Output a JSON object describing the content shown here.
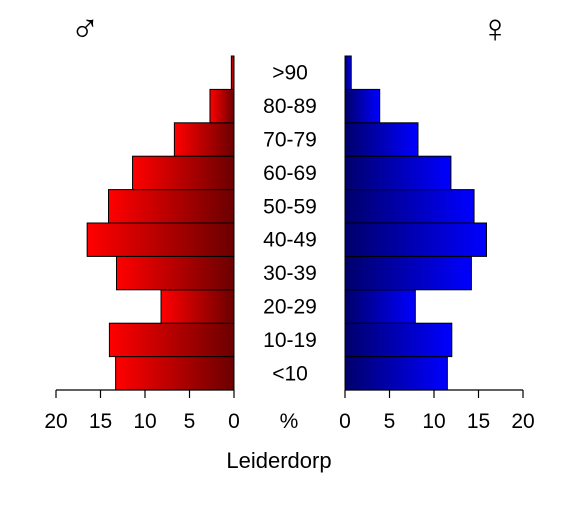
{
  "chart_data": {
    "type": "bar",
    "orientation": "horizontal-pyramid",
    "title": "",
    "subtitle": "Leiderdorp",
    "male_symbol": "♂",
    "female_symbol": "♀",
    "center_axis_label": "%",
    "categories": [
      "<10",
      "10-19",
      "20-29",
      "30-39",
      "40-49",
      "50-59",
      "60-69",
      "70-79",
      "80-89",
      ">90"
    ],
    "series": [
      {
        "side": "left",
        "values": [
          13.3,
          14.0,
          8.2,
          13.2,
          16.5,
          14.1,
          11.4,
          6.7,
          2.7,
          0.3
        ],
        "color_dark": "#6b0000",
        "color_light": "#ff0000"
      },
      {
        "side": "right",
        "values": [
          11.5,
          12.0,
          7.9,
          14.2,
          15.9,
          14.5,
          11.9,
          8.2,
          3.9,
          0.7
        ],
        "color_dark": "#00006b",
        "color_light": "#0000ff"
      }
    ],
    "xlim": [
      0,
      20
    ],
    "x_ticks": [
      0,
      5,
      10,
      15,
      20
    ],
    "x_tick_labels": [
      "0",
      "5",
      "10",
      "15",
      "20"
    ],
    "grid": false
  }
}
